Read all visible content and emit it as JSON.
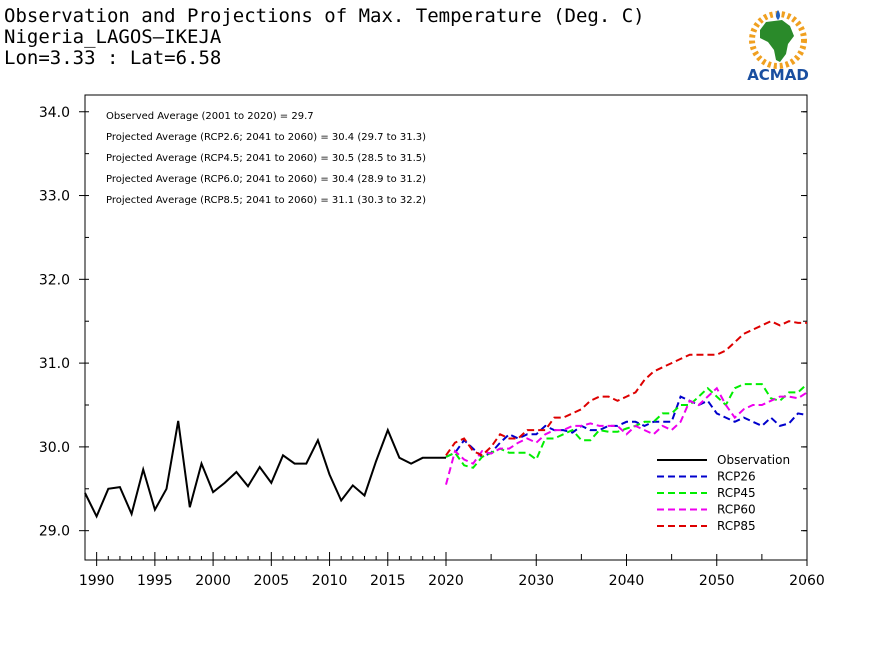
{
  "header": {
    "title": "Observation and Projections of Max. Temperature (Deg. C)",
    "station": "Nigeria_LAGOS—IKEJA",
    "coords": "Lon=3.33 : Lat=6.58"
  },
  "logo": {
    "text": "ACMAD",
    "icon": "africa-map-logo"
  },
  "colors": {
    "observation": "#000000",
    "rcp26": "#0000cc",
    "rcp45": "#00ee00",
    "rcp60": "#ee00ee",
    "rcp85": "#dd0000"
  },
  "chart_data": {
    "type": "line",
    "xlim": [
      1989,
      2060
    ],
    "ylim": [
      28.65,
      34.2
    ],
    "x_ticks": [
      1990,
      1995,
      2000,
      2005,
      2010,
      2015,
      2020,
      2030,
      2040,
      2050,
      2060
    ],
    "y_ticks": [
      29.0,
      30.0,
      31.0,
      32.0,
      33.0,
      34.0
    ],
    "y_tick_labels": [
      "29.0",
      "30.0",
      "31.0",
      "32.0",
      "33.0",
      "34.0"
    ],
    "grid": false,
    "legend_position": "bottom-right",
    "annotations": [
      "Observed Average (2001 to 2020) = 29.7",
      "Projected Average (RCP2.6; 2041 to 2060) = 30.4 (29.7 to 31.3)",
      "Projected Average (RCP4.5; 2041 to 2060) = 30.5 (28.5 to 31.5)",
      "Projected Average (RCP6.0; 2041 to 2060) = 30.4 (28.9 to 31.2)",
      "Projected Average (RCP8.5; 2041 to 2060) = 31.1 (30.3 to 32.2)"
    ],
    "series": [
      {
        "name": "Observation",
        "color_key": "observation",
        "dashed": false,
        "x": [
          1989,
          1990,
          1991,
          1992,
          1993,
          1994,
          1995,
          1996,
          1997,
          1998,
          1999,
          2000,
          2001,
          2002,
          2003,
          2004,
          2005,
          2006,
          2007,
          2008,
          2009,
          2010,
          2011,
          2012,
          2013,
          2014,
          2015,
          2016,
          2017,
          2018,
          2019,
          2020
        ],
        "values": [
          29.45,
          29.17,
          29.5,
          29.52,
          29.2,
          29.73,
          29.25,
          29.5,
          30.31,
          29.28,
          29.8,
          29.46,
          29.57,
          29.7,
          29.53,
          29.76,
          29.57,
          29.9,
          29.8,
          29.8,
          30.08,
          29.67,
          29.36,
          29.54,
          29.42,
          29.83,
          30.2,
          29.87,
          29.8,
          29.87,
          29.87,
          29.87
        ]
      },
      {
        "name": "RCP26",
        "color_key": "rcp26",
        "dashed": true,
        "x": [
          2020,
          2021,
          2022,
          2023,
          2024,
          2025,
          2026,
          2027,
          2028,
          2029,
          2030,
          2031,
          2032,
          2033,
          2034,
          2035,
          2036,
          2037,
          2038,
          2039,
          2040,
          2041,
          2042,
          2043,
          2044,
          2045,
          2046,
          2047,
          2048,
          2049,
          2050,
          2051,
          2052,
          2053,
          2054,
          2055,
          2056,
          2057,
          2058,
          2059,
          2060
        ],
        "values": [
          29.88,
          29.93,
          30.08,
          29.98,
          29.88,
          29.93,
          30.05,
          30.15,
          30.1,
          30.15,
          30.15,
          30.25,
          30.2,
          30.2,
          30.17,
          30.25,
          30.2,
          30.2,
          30.25,
          30.25,
          30.3,
          30.3,
          30.25,
          30.3,
          30.3,
          30.3,
          30.6,
          30.55,
          30.5,
          30.55,
          30.4,
          30.35,
          30.3,
          30.35,
          30.3,
          30.25,
          30.35,
          30.25,
          30.28,
          30.4,
          30.38
        ]
      },
      {
        "name": "RCP45",
        "color_key": "rcp45",
        "dashed": true,
        "x": [
          2020,
          2021,
          2022,
          2023,
          2024,
          2025,
          2026,
          2027,
          2028,
          2029,
          2030,
          2031,
          2032,
          2033,
          2034,
          2035,
          2036,
          2037,
          2038,
          2039,
          2040,
          2041,
          2042,
          2043,
          2044,
          2045,
          2046,
          2047,
          2048,
          2049,
          2050,
          2051,
          2052,
          2053,
          2054,
          2055,
          2056,
          2057,
          2058,
          2059,
          2060
        ],
        "values": [
          29.88,
          29.93,
          29.78,
          29.75,
          29.88,
          29.93,
          29.98,
          29.93,
          29.93,
          29.93,
          29.85,
          30.1,
          30.1,
          30.15,
          30.2,
          30.08,
          30.08,
          30.2,
          30.18,
          30.18,
          30.22,
          30.25,
          30.3,
          30.3,
          30.4,
          30.4,
          30.5,
          30.5,
          30.6,
          30.7,
          30.6,
          30.5,
          30.7,
          30.75,
          30.75,
          30.75,
          30.58,
          30.55,
          30.65,
          30.65,
          30.75
        ]
      },
      {
        "name": "RCP60",
        "color_key": "rcp60",
        "dashed": true,
        "x": [
          2020,
          2021,
          2022,
          2023,
          2024,
          2025,
          2026,
          2027,
          2028,
          2029,
          2030,
          2031,
          2032,
          2033,
          2034,
          2035,
          2036,
          2037,
          2038,
          2039,
          2040,
          2041,
          2042,
          2043,
          2044,
          2045,
          2046,
          2047,
          2048,
          2049,
          2050,
          2051,
          2052,
          2053,
          2054,
          2055,
          2056,
          2057,
          2058,
          2059,
          2060
        ],
        "values": [
          29.55,
          29.95,
          29.85,
          29.8,
          29.95,
          29.92,
          29.98,
          29.98,
          30.05,
          30.1,
          30.05,
          30.15,
          30.2,
          30.2,
          30.25,
          30.25,
          30.28,
          30.25,
          30.25,
          30.25,
          30.15,
          30.25,
          30.2,
          30.15,
          30.25,
          30.2,
          30.3,
          30.55,
          30.5,
          30.6,
          30.7,
          30.5,
          30.35,
          30.45,
          30.5,
          30.5,
          30.55,
          30.6,
          30.6,
          30.58,
          30.65
        ]
      },
      {
        "name": "RCP85",
        "color_key": "rcp85",
        "dashed": true,
        "x": [
          2020,
          2021,
          2022,
          2023,
          2024,
          2025,
          2026,
          2027,
          2028,
          2029,
          2030,
          2031,
          2032,
          2033,
          2034,
          2035,
          2036,
          2037,
          2038,
          2039,
          2040,
          2041,
          2042,
          2043,
          2044,
          2045,
          2046,
          2047,
          2048,
          2049,
          2050,
          2051,
          2052,
          2053,
          2054,
          2055,
          2056,
          2057,
          2058,
          2059,
          2060
        ],
        "values": [
          29.9,
          30.05,
          30.1,
          29.95,
          29.9,
          30.0,
          30.15,
          30.1,
          30.1,
          30.2,
          30.2,
          30.2,
          30.35,
          30.35,
          30.4,
          30.45,
          30.55,
          30.6,
          30.6,
          30.55,
          30.6,
          30.65,
          30.8,
          30.9,
          30.95,
          31.0,
          31.05,
          31.1,
          31.1,
          31.1,
          31.1,
          31.15,
          31.25,
          31.35,
          31.4,
          31.45,
          31.5,
          31.45,
          31.5,
          31.48,
          31.48
        ]
      }
    ]
  }
}
